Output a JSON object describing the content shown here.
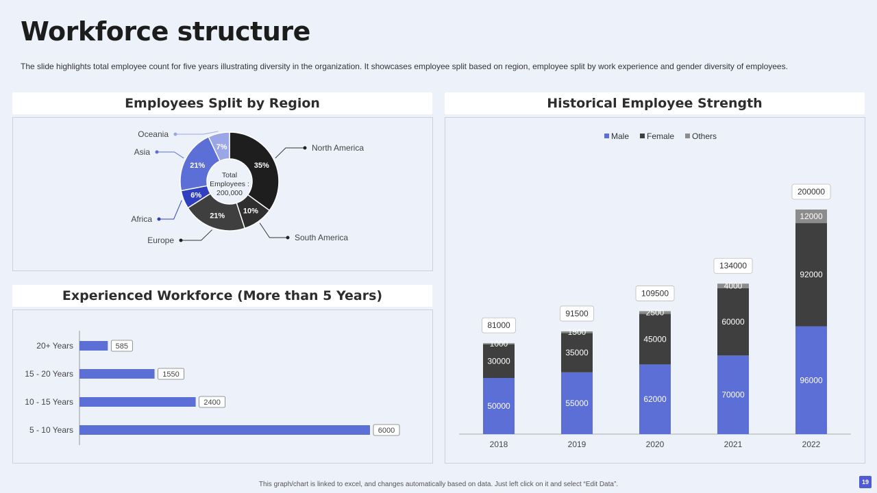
{
  "title": "Workforce structure",
  "subtitle": "The slide highlights total employee count for five years illustrating diversity in the organization. It showcases employee split based on region, employee split by work experience and gender diversity of employees.",
  "footer": "This graph/chart is linked to excel, and changes automatically based on data. Just left click on it and select “Edit Data”.",
  "page_number": "19",
  "panels": {
    "region": "Employees Split by Region",
    "experience": "Experienced Workforce (More than 5 Years)",
    "historical": "Historical Employee Strength"
  },
  "donut_center": {
    "line1": "Total",
    "line2": "Employees :",
    "line3": "200,000"
  },
  "colors": {
    "blue": "#5b6fd6",
    "dark_blue": "#2f3fbf",
    "light_blue": "#9aa6e6",
    "black": "#1e1e1e",
    "dark_gray": "#3f3f3f",
    "gray": "#8c8c8c",
    "panel_border": "#c9d0e3"
  },
  "chart_data": [
    {
      "type": "pie",
      "title": "Employees Split by Region",
      "categories": [
        "North America",
        "South America",
        "Europe",
        "Africa",
        "Asia",
        "Oceania"
      ],
      "values": [
        35,
        10,
        21,
        6,
        21,
        7
      ],
      "labels": [
        "35%",
        "10%",
        "21%",
        "6%",
        "21%",
        "7%"
      ],
      "colors": [
        "#1e1e1e",
        "#2f2f2f",
        "#3f3f3f",
        "#2f3fbf",
        "#5b6fd6",
        "#9aa6e6"
      ]
    },
    {
      "type": "bar",
      "orientation": "horizontal",
      "title": "Experienced Workforce (More than 5 Years)",
      "categories": [
        "20+ Years",
        "15 - 20 Years",
        "10 - 15 Years",
        "5 - 10 Years"
      ],
      "values": [
        585,
        1550,
        2400,
        6000
      ],
      "xlim": [
        0,
        6000
      ]
    },
    {
      "type": "bar",
      "stacked": true,
      "title": "Historical Employee Strength",
      "categories": [
        "2018",
        "2019",
        "2020",
        "2021",
        "2022"
      ],
      "series": [
        {
          "name": "Male",
          "values": [
            50000,
            55000,
            62000,
            70000,
            96000
          ],
          "color": "#5b6fd6"
        },
        {
          "name": "Female",
          "values": [
            30000,
            35000,
            45000,
            60000,
            92000
          ],
          "color": "#3f3f3f"
        },
        {
          "name": "Others",
          "values": [
            1000,
            1500,
            2500,
            4000,
            12000
          ],
          "color": "#8c8c8c"
        }
      ],
      "totals": [
        81000,
        91500,
        109500,
        134000,
        200000
      ],
      "ylim": [
        0,
        200000
      ],
      "legend_position": "top-center"
    }
  ]
}
